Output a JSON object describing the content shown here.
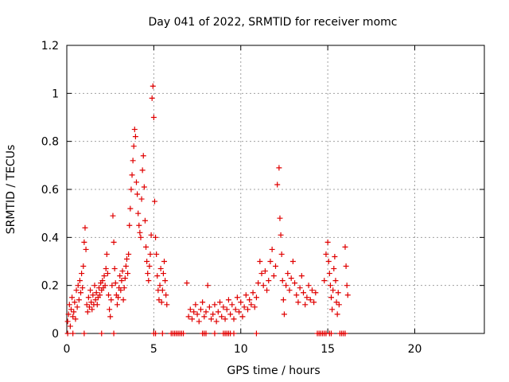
{
  "chart_data": {
    "type": "scatter",
    "title": "Day 041 of 2022, SRMTID for receiver momc",
    "xlabel": "GPS time / hours",
    "ylabel": "SRMTID / TECUs",
    "xlim": [
      0,
      24
    ],
    "ylim": [
      0,
      1.2
    ],
    "xticks": [
      0,
      5,
      10,
      15,
      20
    ],
    "yticks": [
      0,
      0.2,
      0.4,
      0.6,
      0.8,
      1,
      1.2
    ],
    "xtick_labels": [
      "0",
      "5",
      "10",
      "15",
      "20"
    ],
    "ytick_labels": [
      "0",
      "0.2",
      "0.4",
      "0.6",
      "0.8",
      "1",
      "1.2"
    ],
    "grid": true,
    "marker": "plus",
    "color": "#e00000",
    "series": [
      {
        "points": [
          [
            0.05,
            0.05
          ],
          [
            0.1,
            0.08
          ],
          [
            0.15,
            0.12
          ],
          [
            0.2,
            0.03
          ],
          [
            0.25,
            0.1
          ],
          [
            0.3,
            0.15
          ],
          [
            0.35,
            0.07
          ],
          [
            0.4,
            0.09
          ],
          [
            0.45,
            0.13
          ],
          [
            0.5,
            0.06
          ],
          [
            0.55,
            0.18
          ],
          [
            0.6,
            0.11
          ],
          [
            0.65,
            0.2
          ],
          [
            0.7,
            0.14
          ],
          [
            0.75,
            0.22
          ],
          [
            0.8,
            0.17
          ],
          [
            0.85,
            0.25
          ],
          [
            0.9,
            0.19
          ],
          [
            0.95,
            0.28
          ],
          [
            1.0,
            0.38
          ],
          [
            1.05,
            0.44
          ],
          [
            1.1,
            0.35
          ],
          [
            1.15,
            0.12
          ],
          [
            1.2,
            0.09
          ],
          [
            1.25,
            0.15
          ],
          [
            1.3,
            0.11
          ],
          [
            1.35,
            0.18
          ],
          [
            1.4,
            0.13
          ],
          [
            1.45,
            0.1
          ],
          [
            1.5,
            0.16
          ],
          [
            1.55,
            0.12
          ],
          [
            1.6,
            0.2
          ],
          [
            1.65,
            0.14
          ],
          [
            1.7,
            0.17
          ],
          [
            1.75,
            0.12
          ],
          [
            1.8,
            0.15
          ],
          [
            1.85,
            0.19
          ],
          [
            1.9,
            0.16
          ],
          [
            1.95,
            0.21
          ],
          [
            2.0,
            0.18
          ],
          [
            2.05,
            0.22
          ],
          [
            2.1,
            0.19
          ],
          [
            2.15,
            0.24
          ],
          [
            2.2,
            0.2
          ],
          [
            2.25,
            0.27
          ],
          [
            2.3,
            0.33
          ],
          [
            2.35,
            0.25
          ],
          [
            2.4,
            0.16
          ],
          [
            2.45,
            0.1
          ],
          [
            2.5,
            0.07
          ],
          [
            2.55,
            0.14
          ],
          [
            2.6,
            0.2
          ],
          [
            2.65,
            0.49
          ],
          [
            2.7,
            0.38
          ],
          [
            2.75,
            0.27
          ],
          [
            2.8,
            0.21
          ],
          [
            2.85,
            0.16
          ],
          [
            2.9,
            0.12
          ],
          [
            2.95,
            0.15
          ],
          [
            3.0,
            0.19
          ],
          [
            3.05,
            0.24
          ],
          [
            3.1,
            0.18
          ],
          [
            3.15,
            0.22
          ],
          [
            3.2,
            0.26
          ],
          [
            3.25,
            0.14
          ],
          [
            3.3,
            0.19
          ],
          [
            3.35,
            0.23
          ],
          [
            3.4,
            0.28
          ],
          [
            3.45,
            0.31
          ],
          [
            3.5,
            0.25
          ],
          [
            3.55,
            0.33
          ],
          [
            3.6,
            0.45
          ],
          [
            3.65,
            0.52
          ],
          [
            3.7,
            0.6
          ],
          [
            3.75,
            0.66
          ],
          [
            3.8,
            0.72
          ],
          [
            3.85,
            0.78
          ],
          [
            3.9,
            0.85
          ],
          [
            3.95,
            0.82
          ],
          [
            4.0,
            0.63
          ],
          [
            4.05,
            0.58
          ],
          [
            4.1,
            0.5
          ],
          [
            4.15,
            0.45
          ],
          [
            4.2,
            0.42
          ],
          [
            4.25,
            0.4
          ],
          [
            4.3,
            0.56
          ],
          [
            4.35,
            0.68
          ],
          [
            4.4,
            0.74
          ],
          [
            4.45,
            0.61
          ],
          [
            4.5,
            0.47
          ],
          [
            4.55,
            0.36
          ],
          [
            4.6,
            0.3
          ],
          [
            4.65,
            0.25
          ],
          [
            4.7,
            0.22
          ],
          [
            4.75,
            0.28
          ],
          [
            4.8,
            0.33
          ],
          [
            4.85,
            0.41
          ],
          [
            4.9,
            0.98
          ],
          [
            4.95,
            1.03
          ],
          [
            5.0,
            0.9
          ],
          [
            5.05,
            0.55
          ],
          [
            5.1,
            0.4
          ],
          [
            5.15,
            0.33
          ],
          [
            5.2,
            0.24
          ],
          [
            5.25,
            0.18
          ],
          [
            5.3,
            0.14
          ],
          [
            5.35,
            0.2
          ],
          [
            5.4,
            0.27
          ],
          [
            5.45,
            0.13
          ],
          [
            5.5,
            0.18
          ],
          [
            5.55,
            0.25
          ],
          [
            5.6,
            0.3
          ],
          [
            5.65,
            0.22
          ],
          [
            5.7,
            0.16
          ],
          [
            5.75,
            0.12
          ],
          [
            6.9,
            0.21
          ],
          [
            7.0,
            0.07
          ],
          [
            7.1,
            0.1
          ],
          [
            7.2,
            0.06
          ],
          [
            7.3,
            0.09
          ],
          [
            7.4,
            0.12
          ],
          [
            7.5,
            0.08
          ],
          [
            7.6,
            0.05
          ],
          [
            7.7,
            0.1
          ],
          [
            7.8,
            0.13
          ],
          [
            7.9,
            0.07
          ],
          [
            8.0,
            0.09
          ],
          [
            8.1,
            0.2
          ],
          [
            8.2,
            0.11
          ],
          [
            8.3,
            0.06
          ],
          [
            8.4,
            0.08
          ],
          [
            8.5,
            0.12
          ],
          [
            8.6,
            0.05
          ],
          [
            8.7,
            0.09
          ],
          [
            8.8,
            0.13
          ],
          [
            8.9,
            0.07
          ],
          [
            9.0,
            0.11
          ],
          [
            9.1,
            0.06
          ],
          [
            9.2,
            0.1
          ],
          [
            9.3,
            0.14
          ],
          [
            9.4,
            0.08
          ],
          [
            9.5,
            0.12
          ],
          [
            9.6,
            0.06
          ],
          [
            9.7,
            0.1
          ],
          [
            9.8,
            0.15
          ],
          [
            9.9,
            0.09
          ],
          [
            10.0,
            0.13
          ],
          [
            10.1,
            0.07
          ],
          [
            10.2,
            0.11
          ],
          [
            10.3,
            0.16
          ],
          [
            10.4,
            0.1
          ],
          [
            10.5,
            0.14
          ],
          [
            10.6,
            0.12
          ],
          [
            10.7,
            0.17
          ],
          [
            10.8,
            0.11
          ],
          [
            10.9,
            0.15
          ],
          [
            11.0,
            0.21
          ],
          [
            11.1,
            0.3
          ],
          [
            11.2,
            0.25
          ],
          [
            11.3,
            0.2
          ],
          [
            11.4,
            0.26
          ],
          [
            11.5,
            0.18
          ],
          [
            11.6,
            0.22
          ],
          [
            11.7,
            0.3
          ],
          [
            11.8,
            0.35
          ],
          [
            11.9,
            0.24
          ],
          [
            12.0,
            0.28
          ],
          [
            12.1,
            0.62
          ],
          [
            12.2,
            0.69
          ],
          [
            12.25,
            0.48
          ],
          [
            12.3,
            0.41
          ],
          [
            12.35,
            0.33
          ],
          [
            12.4,
            0.22
          ],
          [
            12.45,
            0.14
          ],
          [
            12.5,
            0.08
          ],
          [
            12.6,
            0.2
          ],
          [
            12.7,
            0.25
          ],
          [
            12.8,
            0.18
          ],
          [
            12.9,
            0.23
          ],
          [
            13.0,
            0.3
          ],
          [
            13.1,
            0.21
          ],
          [
            13.2,
            0.16
          ],
          [
            13.3,
            0.13
          ],
          [
            13.4,
            0.19
          ],
          [
            13.5,
            0.24
          ],
          [
            13.6,
            0.17
          ],
          [
            13.7,
            0.12
          ],
          [
            13.8,
            0.15
          ],
          [
            13.9,
            0.2
          ],
          [
            14.0,
            0.14
          ],
          [
            14.1,
            0.18
          ],
          [
            14.2,
            0.13
          ],
          [
            14.3,
            0.17
          ],
          [
            14.8,
            0.22
          ],
          [
            14.9,
            0.33
          ],
          [
            15.0,
            0.38
          ],
          [
            15.05,
            0.3
          ],
          [
            15.1,
            0.25
          ],
          [
            15.15,
            0.2
          ],
          [
            15.2,
            0.15
          ],
          [
            15.25,
            0.1
          ],
          [
            15.3,
            0.18
          ],
          [
            15.35,
            0.27
          ],
          [
            15.4,
            0.32
          ],
          [
            15.45,
            0.22
          ],
          [
            15.5,
            0.13
          ],
          [
            15.55,
            0.08
          ],
          [
            15.6,
            0.17
          ],
          [
            15.65,
            0.12
          ],
          [
            16.0,
            0.36
          ],
          [
            16.05,
            0.28
          ],
          [
            16.1,
            0.2
          ],
          [
            16.15,
            0.16
          ],
          [
            0.05,
            0
          ],
          [
            0.35,
            0
          ],
          [
            1.0,
            0
          ],
          [
            2.0,
            0
          ],
          [
            2.7,
            0
          ],
          [
            5.0,
            0
          ],
          [
            5.1,
            0
          ],
          [
            5.5,
            0
          ],
          [
            6.0,
            0
          ],
          [
            6.1,
            0
          ],
          [
            6.2,
            0
          ],
          [
            6.3,
            0
          ],
          [
            6.4,
            0
          ],
          [
            6.5,
            0
          ],
          [
            6.6,
            0
          ],
          [
            6.7,
            0
          ],
          [
            7.8,
            0
          ],
          [
            7.9,
            0
          ],
          [
            8.0,
            0
          ],
          [
            8.5,
            0
          ],
          [
            9.0,
            0
          ],
          [
            9.1,
            0
          ],
          [
            9.2,
            0
          ],
          [
            9.3,
            0
          ],
          [
            9.4,
            0
          ],
          [
            9.6,
            0
          ],
          [
            10.9,
            0
          ],
          [
            14.4,
            0
          ],
          [
            14.5,
            0
          ],
          [
            14.6,
            0
          ],
          [
            14.7,
            0
          ],
          [
            14.8,
            0
          ],
          [
            14.9,
            0
          ],
          [
            15.1,
            0
          ],
          [
            15.2,
            0
          ],
          [
            15.7,
            0
          ],
          [
            15.8,
            0
          ],
          [
            15.9,
            0
          ],
          [
            16.0,
            0
          ]
        ]
      }
    ]
  }
}
